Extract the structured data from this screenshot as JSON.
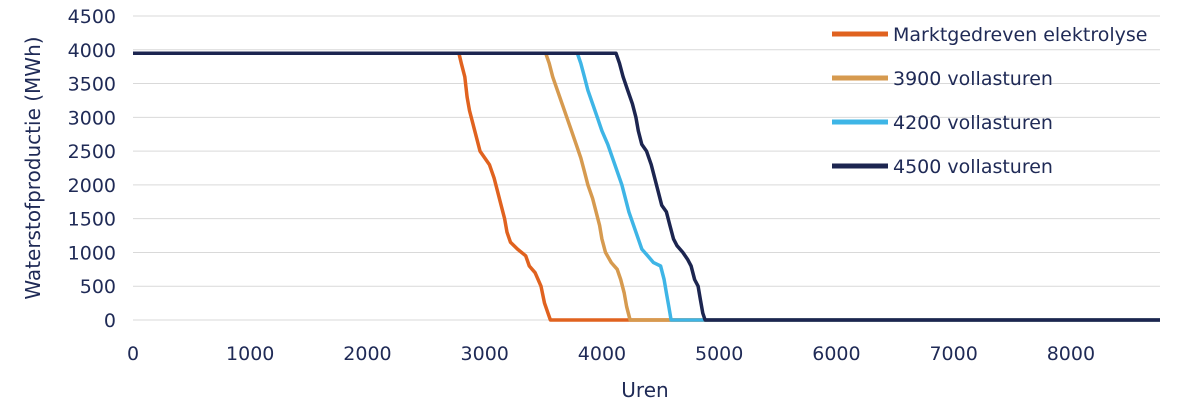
{
  "chart_data": {
    "type": "line",
    "xlabel": "Uren",
    "ylabel": "Waterstofproductie (MWh)",
    "xlim": [
      0,
      8760
    ],
    "ylim": [
      0,
      4500
    ],
    "x_ticks": [
      0,
      1000,
      2000,
      3000,
      4000,
      5000,
      6000,
      7000,
      8000
    ],
    "y_ticks": [
      0,
      500,
      1000,
      1500,
      2000,
      2500,
      3000,
      3500,
      4000,
      4500
    ],
    "grid": true,
    "legend_position": "top-right",
    "series": [
      {
        "name": "Marktgedreven elektrolyse",
        "color": "#e0621f",
        "points": [
          [
            0,
            3950
          ],
          [
            2780,
            3950
          ],
          [
            2800,
            3800
          ],
          [
            2830,
            3600
          ],
          [
            2850,
            3300
          ],
          [
            2870,
            3100
          ],
          [
            2900,
            2900
          ],
          [
            2930,
            2700
          ],
          [
            2960,
            2500
          ],
          [
            3000,
            2400
          ],
          [
            3040,
            2300
          ],
          [
            3080,
            2100
          ],
          [
            3110,
            1900
          ],
          [
            3140,
            1700
          ],
          [
            3170,
            1500
          ],
          [
            3190,
            1300
          ],
          [
            3220,
            1150
          ],
          [
            3280,
            1050
          ],
          [
            3350,
            950
          ],
          [
            3380,
            800
          ],
          [
            3430,
            700
          ],
          [
            3480,
            500
          ],
          [
            3510,
            250
          ],
          [
            3540,
            100
          ],
          [
            3560,
            0
          ],
          [
            8760,
            0
          ]
        ]
      },
      {
        "name": "3900 vollasturen",
        "color": "#d69a4f",
        "points": [
          [
            0,
            3950
          ],
          [
            3520,
            3950
          ],
          [
            3550,
            3800
          ],
          [
            3580,
            3600
          ],
          [
            3620,
            3400
          ],
          [
            3660,
            3200
          ],
          [
            3700,
            3000
          ],
          [
            3740,
            2800
          ],
          [
            3780,
            2600
          ],
          [
            3820,
            2400
          ],
          [
            3850,
            2200
          ],
          [
            3880,
            2000
          ],
          [
            3920,
            1800
          ],
          [
            3950,
            1600
          ],
          [
            3980,
            1400
          ],
          [
            4000,
            1200
          ],
          [
            4030,
            1000
          ],
          [
            4080,
            850
          ],
          [
            4130,
            750
          ],
          [
            4160,
            600
          ],
          [
            4190,
            400
          ],
          [
            4210,
            200
          ],
          [
            4240,
            0
          ],
          [
            8760,
            0
          ]
        ]
      },
      {
        "name": "4200 vollasturen",
        "color": "#3eb5e6",
        "points": [
          [
            0,
            3950
          ],
          [
            3790,
            3950
          ],
          [
            3820,
            3800
          ],
          [
            3850,
            3600
          ],
          [
            3880,
            3400
          ],
          [
            3920,
            3200
          ],
          [
            3960,
            3000
          ],
          [
            4000,
            2800
          ],
          [
            4050,
            2600
          ],
          [
            4090,
            2400
          ],
          [
            4130,
            2200
          ],
          [
            4170,
            2000
          ],
          [
            4200,
            1800
          ],
          [
            4230,
            1600
          ],
          [
            4270,
            1400
          ],
          [
            4310,
            1200
          ],
          [
            4340,
            1050
          ],
          [
            4390,
            950
          ],
          [
            4440,
            850
          ],
          [
            4500,
            800
          ],
          [
            4530,
            600
          ],
          [
            4550,
            400
          ],
          [
            4570,
            200
          ],
          [
            4590,
            0
          ],
          [
            8760,
            0
          ]
        ]
      },
      {
        "name": "4500 vollasturen",
        "color": "#1c2550",
        "points": [
          [
            0,
            3950
          ],
          [
            4120,
            3950
          ],
          [
            4150,
            3800
          ],
          [
            4180,
            3600
          ],
          [
            4220,
            3400
          ],
          [
            4260,
            3200
          ],
          [
            4290,
            3000
          ],
          [
            4310,
            2800
          ],
          [
            4340,
            2600
          ],
          [
            4380,
            2500
          ],
          [
            4420,
            2300
          ],
          [
            4450,
            2100
          ],
          [
            4480,
            1900
          ],
          [
            4510,
            1700
          ],
          [
            4550,
            1600
          ],
          [
            4580,
            1400
          ],
          [
            4610,
            1200
          ],
          [
            4640,
            1100
          ],
          [
            4690,
            1000
          ],
          [
            4730,
            900
          ],
          [
            4760,
            800
          ],
          [
            4790,
            600
          ],
          [
            4820,
            500
          ],
          [
            4840,
            300
          ],
          [
            4860,
            100
          ],
          [
            4880,
            0
          ],
          [
            8760,
            0
          ]
        ]
      }
    ]
  }
}
